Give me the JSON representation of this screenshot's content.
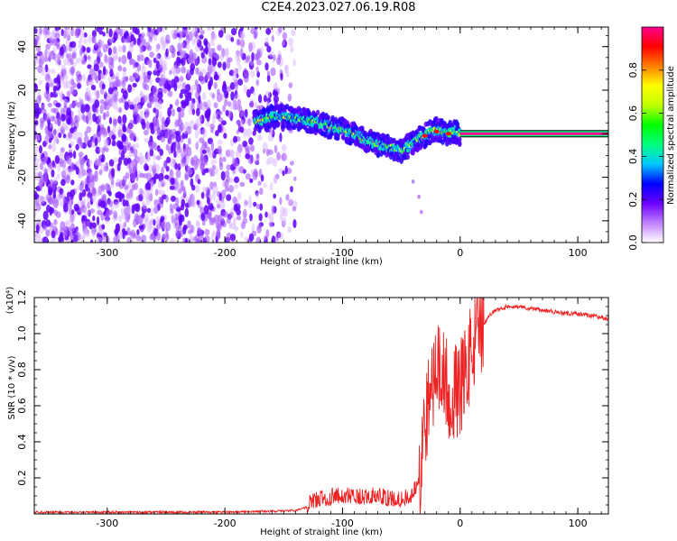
{
  "title": "C2E4.2023.027.06.19.R08",
  "chart_data": [
    {
      "type": "heatmap",
      "xlabel": "Height of straight line (km)",
      "ylabel": "Frequency (Hz)",
      "xlim": [
        -362,
        126
      ],
      "ylim": [
        -50,
        49
      ],
      "xticks": [
        -300,
        -200,
        -100,
        0,
        100
      ],
      "xtick_labels": [
        "-300",
        "-200",
        "-100",
        "0",
        "100"
      ],
      "yticks": [
        -40,
        -20,
        0,
        20,
        40
      ],
      "ytick_labels": [
        "-40",
        "-20",
        "0",
        "20",
        "40"
      ],
      "colorbar": {
        "label": "Normalized spectral amplitude",
        "range": [
          0,
          1
        ],
        "ticks": [
          0.0,
          0.2,
          0.4,
          0.6,
          0.8
        ],
        "tick_labels": [
          "0.0",
          "0.2",
          "0.4",
          "0.6",
          "0.8"
        ],
        "colors": [
          "#ffffff",
          "#c080ff",
          "#6a00ff",
          "#0000ff",
          "#00c8ff",
          "#00ff80",
          "#00ff00",
          "#c0ff00",
          "#ffff00",
          "#ff8000",
          "#ff0000",
          "#ff0090"
        ]
      },
      "signal_trace": {
        "x": [
          -175,
          -160,
          -150,
          -140,
          -130,
          -120,
          -110,
          -100,
          -90,
          -80,
          -70,
          -60,
          -55,
          -50,
          -45,
          -40,
          -35,
          -30,
          -25,
          -20,
          -15,
          -10,
          -5,
          0
        ],
        "y": [
          5,
          8,
          8,
          7,
          6,
          5,
          3,
          2,
          0,
          -3,
          -5,
          -6,
          -7,
          -8,
          -6,
          -4,
          -2,
          -1,
          1,
          2,
          1,
          0,
          1,
          0
        ]
      },
      "carrier_band": {
        "x_start": 0,
        "x_end": 126,
        "frequency": 0
      },
      "noise_region": {
        "x_start": -362,
        "x_end": -150
      }
    },
    {
      "type": "line",
      "xlabel": "Height of straight line (km)",
      "ylabel": "SNR (10 * v/v)",
      "multiplier": "(x10⁴)",
      "xlim": [
        -362,
        126
      ],
      "ylim": [
        0,
        1.2
      ],
      "xticks": [
        -300,
        -200,
        -100,
        0,
        100
      ],
      "xtick_labels": [
        "-300",
        "-200",
        "-100",
        "0",
        "100"
      ],
      "yticks": [
        0.2,
        0.4,
        0.6,
        0.8,
        1.0,
        1.2
      ],
      "ytick_labels": [
        "0.2",
        "0.4",
        "0.6",
        "0.8",
        "1.0",
        "1.2"
      ],
      "color": "#ee2222",
      "series": [
        {
          "x": [
            -362,
            -300,
            -250,
            -200,
            -160,
            -140,
            -130,
            -125,
            -120,
            -110,
            -100,
            -90,
            -80,
            -70,
            -60,
            -50,
            -45,
            -40,
            -35,
            -30,
            -25,
            -20,
            -15,
            -10,
            -5,
            0,
            5,
            10,
            15,
            20,
            25,
            30,
            40,
            50,
            60,
            70,
            80,
            90,
            100,
            110,
            120,
            126
          ],
          "y": [
            0.01,
            0.01,
            0.01,
            0.01,
            0.015,
            0.02,
            0.04,
            0.06,
            0.07,
            0.08,
            0.09,
            0.08,
            0.08,
            0.09,
            0.07,
            0.07,
            0.08,
            0.1,
            0.2,
            0.5,
            0.7,
            0.8,
            0.75,
            0.7,
            0.65,
            0.7,
            0.8,
            0.9,
            1.0,
            1.05,
            1.1,
            1.13,
            1.15,
            1.15,
            1.14,
            1.13,
            1.12,
            1.11,
            1.11,
            1.1,
            1.09,
            1.08
          ]
        }
      ]
    }
  ]
}
